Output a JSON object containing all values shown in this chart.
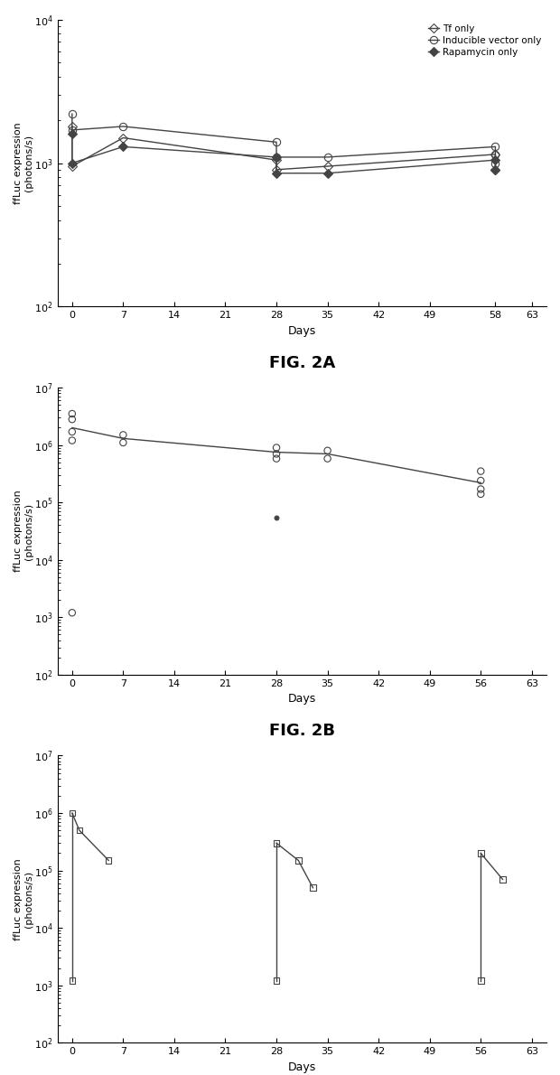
{
  "fig_width": 6.2,
  "fig_height": 11.9,
  "background_color": "#ffffff",
  "panel_A": {
    "xlabel": "Days",
    "ylabel": "ffLuc expression\n(photons/s)",
    "xlim": [
      -2,
      65
    ],
    "ylim_log": [
      2,
      4
    ],
    "xticks": [
      0,
      7,
      14,
      21,
      28,
      35,
      42,
      49,
      58,
      63
    ],
    "legend_labels": [
      "Tf only",
      "Inducible vector only",
      "Rapamycin only"
    ],
    "tf_only": {
      "marker": "D",
      "marker_size": 5,
      "fillstyle": "none",
      "color": "#444444",
      "linewidth": 1.0,
      "x": [
        0,
        0,
        7,
        28,
        28,
        35,
        58,
        58
      ],
      "y": [
        1800,
        950,
        1500,
        1050,
        900,
        950,
        1150,
        900
      ]
    },
    "inducible": {
      "marker": "o",
      "marker_size": 6,
      "fillstyle": "none",
      "color": "#444444",
      "linewidth": 1.0,
      "x": [
        0,
        0,
        7,
        28,
        28,
        35,
        58,
        58,
        58
      ],
      "y": [
        2200,
        1700,
        1800,
        1400,
        1100,
        1100,
        1300,
        1150,
        1000
      ]
    },
    "rapamycin": {
      "marker": "D",
      "marker_size": 5,
      "fillstyle": "full",
      "color": "#444444",
      "linewidth": 1.0,
      "x": [
        0,
        0,
        7,
        28,
        28,
        35,
        58,
        58
      ],
      "y": [
        1600,
        1000,
        1300,
        1100,
        850,
        850,
        1050,
        900
      ]
    }
  },
  "panel_B": {
    "xlabel": "Days",
    "ylabel": "ffLuc expression\n(photons/s)",
    "xlim": [
      -2,
      65
    ],
    "ylim_log": [
      2,
      7
    ],
    "xticks": [
      0,
      7,
      14,
      21,
      28,
      35,
      42,
      49,
      56,
      63
    ],
    "main_line_x": [
      0,
      7,
      28,
      35,
      56
    ],
    "main_line_y": [
      2000000,
      1300000,
      750000,
      700000,
      220000
    ],
    "open_circles": {
      "x": [
        0,
        0,
        0,
        0,
        7,
        7,
        28,
        28,
        28,
        35,
        35,
        56,
        56,
        56,
        56
      ],
      "y": [
        3500000,
        2800000,
        1700000,
        1200000,
        1500000,
        1100000,
        900000,
        700000,
        580000,
        800000,
        580000,
        350000,
        240000,
        170000,
        140000
      ]
    },
    "filled_dot": {
      "x": [
        28
      ],
      "y": [
        55000
      ]
    },
    "low_open_circle": {
      "x": [
        0
      ],
      "y": [
        1200
      ]
    }
  },
  "panel_C": {
    "xlabel": "Days",
    "ylabel": "ffLuc expression\n(photons/s)",
    "xlim": [
      -2,
      65
    ],
    "ylim_log": [
      2,
      7
    ],
    "xticks": [
      0,
      7,
      14,
      21,
      28,
      35,
      42,
      49,
      56,
      63
    ],
    "segments": [
      {
        "x": [
          0,
          1,
          5
        ],
        "y": [
          1000000,
          500000,
          150000
        ]
      },
      {
        "x": [
          28,
          31,
          33
        ],
        "y": [
          300000,
          150000,
          50000
        ]
      },
      {
        "x": [
          56,
          59
        ],
        "y": [
          200000,
          70000
        ]
      }
    ],
    "low_squares": {
      "x": [
        0,
        28,
        56
      ],
      "y": [
        1200,
        1200,
        1200
      ]
    },
    "all_squares_x": [
      0,
      0,
      1,
      5,
      28,
      28,
      31,
      33,
      56,
      56,
      59
    ],
    "all_squares_y": [
      1000000,
      1200,
      500000,
      150000,
      300000,
      1200,
      150000,
      50000,
      200000,
      1200,
      70000
    ]
  }
}
